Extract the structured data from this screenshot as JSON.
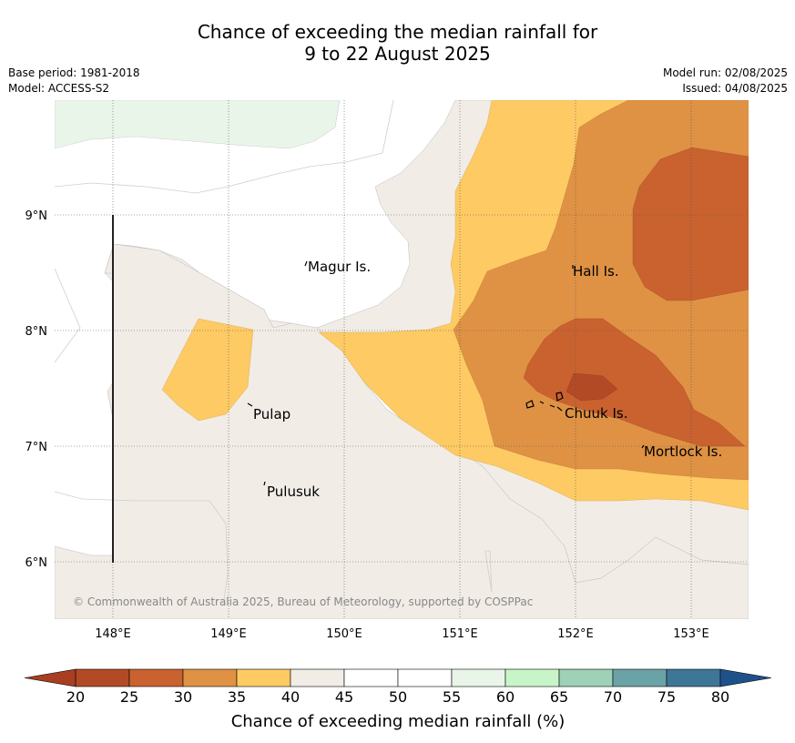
{
  "title_line1": "Chance of exceeding the median rainfall for",
  "title_line2": "9 to 22 August 2025",
  "base_period": "Base period: 1981-2018",
  "model": "Model: ACCESS-S2",
  "model_run": "Model run: 02/08/2025",
  "issued": "Issued: 04/08/2025",
  "copyright": "© Commonwealth of Australia 2025, Bureau of Meteorology, supported by COSPPac",
  "places": {
    "magur": "Magur Is.",
    "hall": "Hall Is.",
    "pulap": "Pulap",
    "chuuk": "Chuuk Is.",
    "mortlock": "Mortlock Is.",
    "pulusuk": "Pulusuk"
  },
  "lat_labels": [
    "9°N",
    "8°N",
    "7°N",
    "6°N"
  ],
  "lon_labels": [
    "148°E",
    "149°E",
    "150°E",
    "151°E",
    "152°E",
    "153°E"
  ],
  "colorbar": {
    "title": "Chance of exceeding median rainfall (%)",
    "ticks": [
      "20",
      "25",
      "30",
      "35",
      "40",
      "45",
      "50",
      "55",
      "60",
      "65",
      "70",
      "75",
      "80"
    ],
    "colors": [
      "#b34a26",
      "#c9622f",
      "#df9244",
      "#fdca64",
      "#f1ece6",
      "#ffffff",
      "#ffffff",
      "#eaf5ea",
      "#c8f5c8",
      "#9dd1b8",
      "#6aa3a6",
      "#3e7698"
    ],
    "under_color": "#a83e22",
    "over_color": "#1f5189"
  }
}
